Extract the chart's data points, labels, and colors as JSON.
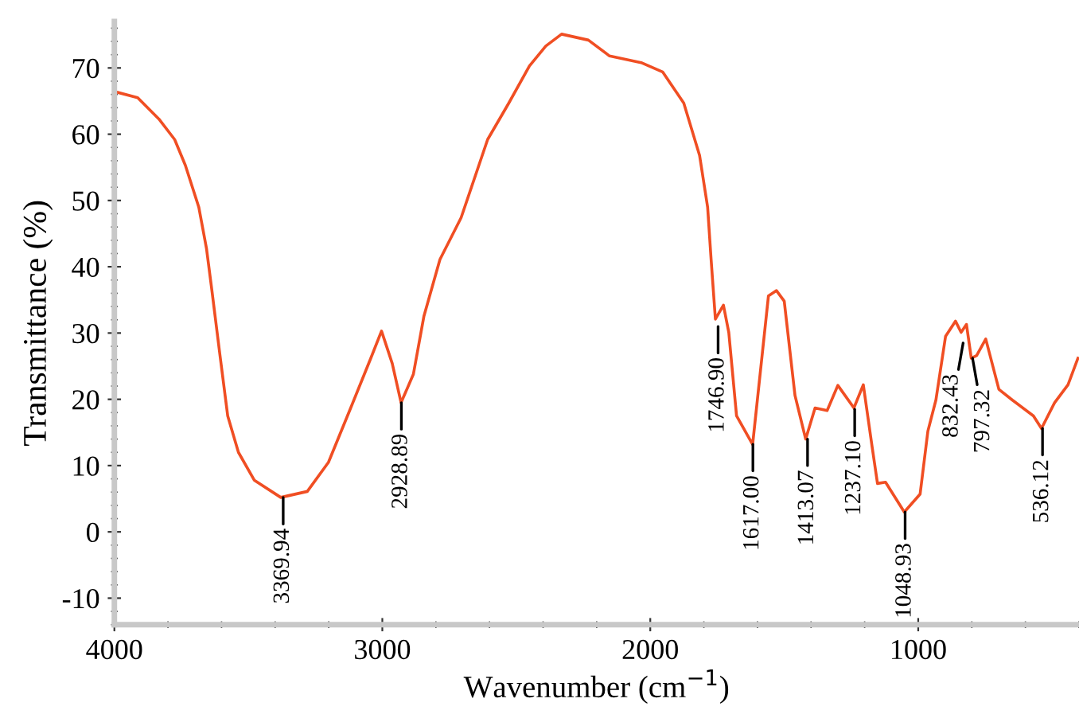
{
  "chart_data": {
    "type": "line",
    "xlabel": "Wavenumber (cm$^{−1}$)",
    "ylabel": "Transmittance (%)",
    "xlim": [
      4000,
      400
    ],
    "ylim": [
      -14,
      77
    ],
    "xticks": [
      4000,
      3000,
      2000,
      1000
    ],
    "yticks": [
      -10,
      0,
      10,
      20,
      30,
      40,
      50,
      60,
      70
    ],
    "grid": false,
    "marker": "none",
    "line_style": "solid",
    "series": [
      {
        "color": "#f04e23",
        "x": [
          3996,
          3913,
          3834,
          3775,
          3735,
          3685,
          3656,
          3636,
          3607,
          3577,
          3537,
          3478,
          3379,
          3280,
          3201,
          3122,
          3043,
          3003,
          2963,
          2930,
          2884,
          2845,
          2785,
          2706,
          2607,
          2528,
          2451,
          2390,
          2331,
          2231,
          2152,
          2034,
          1954,
          1875,
          1816,
          1786,
          1773,
          1757,
          1727,
          1707,
          1678,
          1618,
          1559,
          1529,
          1500,
          1460,
          1420,
          1385,
          1340,
          1300,
          1240,
          1205,
          1172,
          1152,
          1122,
          1052,
          993,
          964,
          934,
          898,
          861,
          840,
          820,
          802,
          782,
          748,
          699,
          649,
          570,
          540,
          491,
          441,
          404
        ],
        "values": [
          66.4,
          65.5,
          62.3,
          59.2,
          55.3,
          49.0,
          42.7,
          36.4,
          27.0,
          17.5,
          12.0,
          7.8,
          5.2,
          6.1,
          10.5,
          18.3,
          26.2,
          30.3,
          25.4,
          19.5,
          23.8,
          32.5,
          41.1,
          47.4,
          59.2,
          64.7,
          70.3,
          73.3,
          75.1,
          74.2,
          71.8,
          70.8,
          69.4,
          64.7,
          56.8,
          49.0,
          41.1,
          32.1,
          34.2,
          30.1,
          17.5,
          13.2,
          35.6,
          36.4,
          34.8,
          20.6,
          14.0,
          18.7,
          18.3,
          22.1,
          18.7,
          22.2,
          12.8,
          7.3,
          7.5,
          3.0,
          5.7,
          15.2,
          19.9,
          29.5,
          31.8,
          30.1,
          31.3,
          26.2,
          26.6,
          29.1,
          21.5,
          19.9,
          17.5,
          15.6,
          19.5,
          22.2,
          26.2
        ]
      }
    ],
    "annotations": [
      {
        "text": "3369.94",
        "x": 3369.94,
        "y": 5.2
      },
      {
        "text": "2928.89",
        "x": 2928.89,
        "y": 19.5
      },
      {
        "text": "1746.90",
        "x": 1746.9,
        "y": 31
      },
      {
        "text": "1617.00",
        "x": 1617.0,
        "y": 13.2
      },
      {
        "text": "1413.07",
        "x": 1413.07,
        "y": 14.0
      },
      {
        "text": "1237.10",
        "x": 1237.1,
        "y": 18.5
      },
      {
        "text": "1048.93",
        "x": 1048.93,
        "y": 3.0
      },
      {
        "text": "832.43",
        "x": 832.43,
        "y": 28.5
      },
      {
        "text": "797.32",
        "x": 797.32,
        "y": 26.2
      },
      {
        "text": "536.12",
        "x": 536.12,
        "y": 15.6
      }
    ]
  }
}
